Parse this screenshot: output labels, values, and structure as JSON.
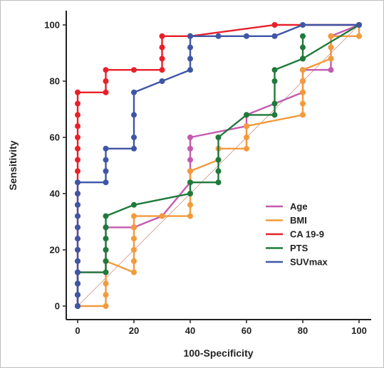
{
  "chart_data": {
    "type": "line",
    "title": "",
    "xlabel": "100-Specificity",
    "ylabel": "Sensitivity",
    "xlim": [
      0,
      100
    ],
    "ylim": [
      0,
      100
    ],
    "xticks": [
      0,
      20,
      40,
      60,
      80,
      100
    ],
    "yticks": [
      0,
      20,
      40,
      60,
      80,
      100
    ],
    "grid": false,
    "legend_position": "bottom-right",
    "reference_line": {
      "x": [
        0,
        100
      ],
      "y": [
        0,
        100
      ],
      "color": "#d9a8a0"
    },
    "series": [
      {
        "name": "Age",
        "color": "#c45bb0",
        "x": [
          0,
          0,
          0,
          0,
          10,
          10,
          10,
          10,
          20,
          20,
          30,
          40,
          40,
          40,
          40,
          40,
          60,
          60,
          60,
          80,
          80,
          80,
          90,
          90,
          90,
          100
        ],
        "y": [
          0,
          4,
          8,
          12,
          12,
          16,
          20,
          28,
          28,
          28,
          32,
          44,
          48,
          52,
          56,
          60,
          64,
          64,
          68,
          76,
          80,
          84,
          84,
          92,
          96,
          100
        ]
      },
      {
        "name": "BMI",
        "color": "#f39a3c",
        "x": [
          0,
          10,
          10,
          10,
          10,
          10,
          20,
          20,
          20,
          20,
          20,
          20,
          30,
          40,
          40,
          40,
          40,
          40,
          50,
          50,
          50,
          60,
          60,
          60,
          80,
          80,
          80,
          80,
          80,
          90,
          90,
          90,
          90,
          100,
          100
        ],
        "y": [
          0,
          0,
          4,
          8,
          12,
          16,
          12,
          16,
          20,
          24,
          28,
          32,
          32,
          32,
          36,
          40,
          44,
          48,
          52,
          52,
          56,
          56,
          60,
          64,
          68,
          72,
          76,
          80,
          84,
          88,
          88,
          92,
          96,
          96,
          100
        ]
      },
      {
        "name": "CA 19-9",
        "color": "#e8202a",
        "x": [
          0,
          0,
          0,
          0,
          0,
          0,
          0,
          0,
          0,
          0,
          0,
          0,
          0,
          0,
          0,
          0,
          0,
          0,
          0,
          0,
          10,
          10,
          10,
          20,
          30,
          30,
          30,
          30,
          40,
          70,
          100
        ],
        "y": [
          0,
          4,
          8,
          12,
          16,
          20,
          24,
          28,
          32,
          36,
          40,
          44,
          48,
          52,
          56,
          60,
          64,
          68,
          72,
          76,
          76,
          80,
          84,
          84,
          84,
          88,
          92,
          96,
          96,
          100,
          100
        ]
      },
      {
        "name": "PTS",
        "color": "#1f7a3b",
        "x": [
          0,
          0,
          0,
          0,
          10,
          10,
          10,
          10,
          10,
          10,
          20,
          40,
          40,
          50,
          50,
          50,
          50,
          60,
          70,
          70,
          70,
          70,
          80,
          80,
          80,
          80,
          100
        ],
        "y": [
          0,
          4,
          8,
          12,
          12,
          16,
          20,
          24,
          28,
          32,
          36,
          40,
          44,
          44,
          48,
          52,
          60,
          68,
          68,
          72,
          80,
          84,
          88,
          92,
          96,
          88,
          100
        ]
      },
      {
        "name": "SUVmax",
        "color": "#3f56a6",
        "x": [
          0,
          0,
          0,
          0,
          0,
          0,
          0,
          0,
          0,
          0,
          0,
          0,
          10,
          10,
          10,
          10,
          20,
          20,
          20,
          20,
          30,
          40,
          40,
          40,
          40,
          40,
          50,
          60,
          70,
          80,
          100
        ],
        "y": [
          0,
          4,
          8,
          12,
          16,
          20,
          24,
          28,
          32,
          36,
          40,
          44,
          44,
          48,
          52,
          56,
          56,
          60,
          68,
          76,
          80,
          84,
          88,
          92,
          96,
          96,
          96,
          96,
          96,
          100,
          100
        ]
      }
    ]
  }
}
